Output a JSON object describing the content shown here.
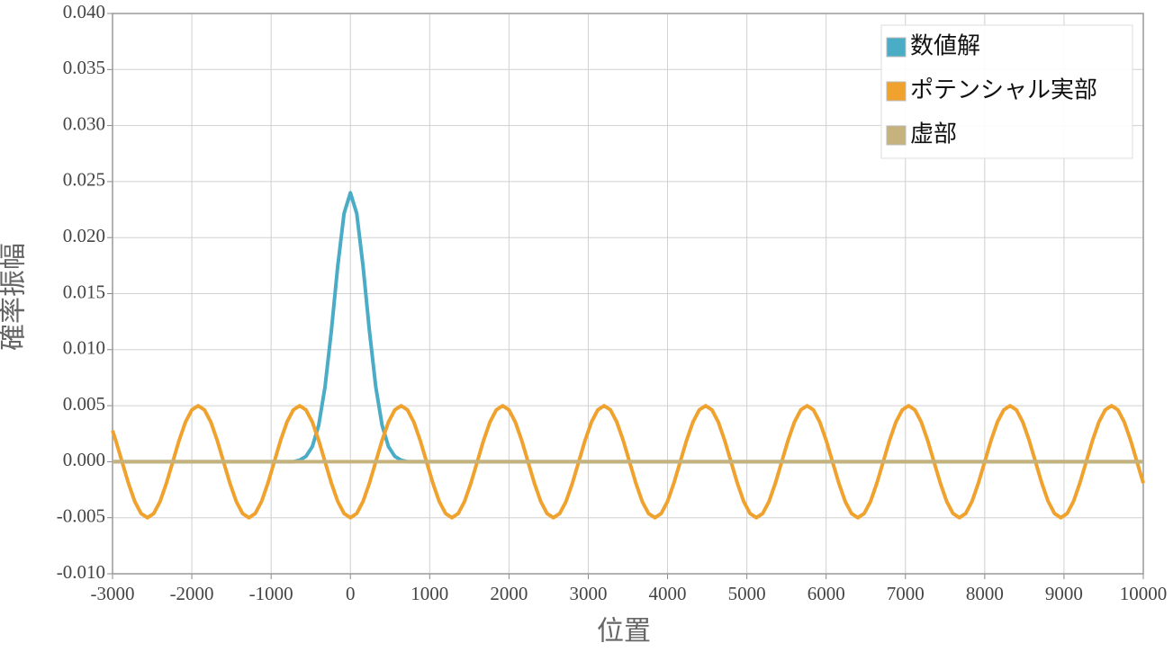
{
  "chart_data": {
    "type": "line",
    "x_label": "位置",
    "y_label": "確率振幅",
    "x": [
      -3000,
      -2960,
      -2880,
      -2800,
      -2720,
      -2640,
      -2560,
      -2480,
      -2400,
      -2320,
      -2240,
      -2160,
      -2080,
      -2000,
      -1920,
      -1840,
      -1760,
      -1680,
      -1600,
      -1520,
      -1440,
      -1360,
      -1280,
      -1200,
      -1120,
      -1040,
      -960,
      -880,
      -800,
      -720,
      -640,
      -560,
      -480,
      -400,
      -320,
      -240,
      -160,
      -80,
      0,
      80,
      160,
      240,
      320,
      400,
      480,
      560,
      640,
      720,
      800,
      880,
      960,
      1040,
      1120,
      1200,
      1280,
      1360,
      1440,
      1520,
      1600,
      1680,
      1760,
      1840,
      1920,
      2000,
      2080,
      2160,
      2240,
      2320,
      2400,
      2480,
      2560,
      2640,
      2720,
      2800,
      2880,
      2960,
      3040,
      3120,
      3200,
      3280,
      3360,
      3440,
      3520,
      3600,
      3680,
      3760,
      3840,
      3920,
      4000,
      4080,
      4160,
      4240,
      4320,
      4400,
      4480,
      4560,
      4640,
      4720,
      4800,
      4880,
      4960,
      5040,
      5120,
      5200,
      5280,
      5360,
      5440,
      5520,
      5600,
      5680,
      5760,
      5840,
      5920,
      6000,
      6080,
      6160,
      6240,
      6320,
      6400,
      6480,
      6560,
      6640,
      6720,
      6800,
      6880,
      6960,
      7040,
      7120,
      7200,
      7280,
      7360,
      7440,
      7520,
      7600,
      7680,
      7760,
      7840,
      7920,
      8000,
      8080,
      8160,
      8240,
      8320,
      8400,
      8480,
      8560,
      8640,
      8720,
      8800,
      8880,
      8960,
      9040,
      9120,
      9200,
      9280,
      9360,
      9440,
      9520,
      9600,
      9680,
      9760,
      9840,
      9920,
      10000
    ],
    "series": [
      {
        "name": "数値解",
        "color": "#4bacc6",
        "values": [
          0,
          0,
          0,
          0,
          0,
          0,
          0,
          0,
          0,
          0,
          0,
          0,
          0,
          0,
          0,
          0,
          0,
          0,
          0,
          0,
          0,
          0,
          0,
          0,
          0,
          0,
          0,
          0,
          0,
          0,
          0.00014,
          0.00048,
          0.00135,
          0.00325,
          0.00668,
          0.01168,
          0.01743,
          0.02215,
          0.024,
          0.02215,
          0.01743,
          0.01168,
          0.00668,
          0.00325,
          0.00135,
          0.00048,
          0.00014,
          0,
          0,
          0,
          0,
          0,
          0,
          0,
          0,
          0,
          0,
          0,
          0,
          0,
          0,
          0,
          0,
          0,
          0,
          0,
          0,
          0,
          0,
          0,
          0,
          0,
          0,
          0,
          0,
          0,
          0,
          0,
          0,
          0,
          0,
          0,
          0,
          0,
          0,
          0,
          0,
          0,
          0,
          0,
          0,
          0,
          0,
          0,
          0,
          0,
          0,
          0,
          0,
          0,
          0,
          0,
          0,
          0,
          0,
          0,
          0,
          0,
          0,
          0,
          0,
          0,
          0,
          0,
          0,
          0,
          0,
          0,
          0,
          0,
          0,
          0,
          0,
          0,
          0,
          0,
          0,
          0,
          0,
          0,
          0,
          0,
          0,
          0,
          0,
          0,
          0,
          0,
          0,
          0,
          0,
          0,
          0,
          0,
          0,
          0,
          0,
          0,
          0,
          0,
          0,
          0,
          0,
          0,
          0,
          0,
          0,
          0,
          0,
          0,
          0,
          0,
          0,
          0
        ]
      },
      {
        "name": "ポテンシャル実部",
        "color": "#f0a22e",
        "values": [
          0.00278,
          0.00191,
          0,
          -0.00191,
          -0.00354,
          -0.00462,
          -0.005,
          -0.00462,
          -0.00354,
          -0.00191,
          0,
          0.00191,
          0.00354,
          0.00462,
          0.005,
          0.00462,
          0.00354,
          0.00191,
          0,
          -0.00191,
          -0.00354,
          -0.00462,
          -0.005,
          -0.00462,
          -0.00354,
          -0.00191,
          0,
          0.00191,
          0.00354,
          0.00462,
          0.005,
          0.00462,
          0.00354,
          0.00191,
          0,
          -0.00191,
          -0.00354,
          -0.00462,
          -0.005,
          -0.00462,
          -0.00354,
          -0.00191,
          0,
          0.00191,
          0.00354,
          0.00462,
          0.005,
          0.00462,
          0.00354,
          0.00191,
          0,
          -0.00191,
          -0.00354,
          -0.00462,
          -0.005,
          -0.00462,
          -0.00354,
          -0.00191,
          0,
          0.00191,
          0.00354,
          0.00462,
          0.005,
          0.00462,
          0.00354,
          0.00191,
          0,
          -0.00191,
          -0.00354,
          -0.00462,
          -0.005,
          -0.00462,
          -0.00354,
          -0.00191,
          0,
          0.00191,
          0.00354,
          0.00462,
          0.005,
          0.00462,
          0.00354,
          0.00191,
          0,
          -0.00191,
          -0.00354,
          -0.00462,
          -0.005,
          -0.00462,
          -0.00354,
          -0.00191,
          0,
          0.00191,
          0.00354,
          0.00462,
          0.005,
          0.00462,
          0.00354,
          0.00191,
          0,
          -0.00191,
          -0.00354,
          -0.00462,
          -0.005,
          -0.00462,
          -0.00354,
          -0.00191,
          0,
          0.00191,
          0.00354,
          0.00462,
          0.005,
          0.00462,
          0.00354,
          0.00191,
          0,
          -0.00191,
          -0.00354,
          -0.00462,
          -0.005,
          -0.00462,
          -0.00354,
          -0.00191,
          0,
          0.00191,
          0.00354,
          0.00462,
          0.005,
          0.00462,
          0.00354,
          0.00191,
          0,
          -0.00191,
          -0.00354,
          -0.00462,
          -0.005,
          -0.00462,
          -0.00354,
          -0.00191,
          0,
          0.00191,
          0.00354,
          0.00462,
          0.005,
          0.00462,
          0.00354,
          0.00191,
          0,
          -0.00191,
          -0.00354,
          -0.00462,
          -0.005,
          -0.00462,
          -0.00354,
          -0.00191,
          0,
          0.00191,
          0.00354,
          0.00462,
          0.005,
          0.00462,
          0.00354,
          0.00191,
          0,
          -0.00191
        ]
      },
      {
        "name": "虚部",
        "color": "#c6b27c",
        "values": [
          0,
          0,
          0,
          0,
          0,
          0,
          0,
          0,
          0,
          0,
          0,
          0,
          0,
          0,
          0,
          0,
          0,
          0,
          0,
          0,
          0,
          0,
          0,
          0,
          0,
          0,
          0,
          0,
          0,
          0,
          0,
          0,
          0,
          0,
          0,
          0,
          0,
          0,
          0,
          0,
          0,
          0,
          0,
          0,
          0,
          0,
          0,
          0,
          0,
          0,
          0,
          0,
          0,
          0,
          0,
          0,
          0,
          0,
          0,
          0,
          0,
          0,
          0,
          0,
          0,
          0,
          0,
          0,
          0,
          0,
          0,
          0,
          0,
          0,
          0,
          0,
          0,
          0,
          0,
          0,
          0,
          0,
          0,
          0,
          0,
          0,
          0,
          0,
          0,
          0,
          0,
          0,
          0,
          0,
          0,
          0,
          0,
          0,
          0,
          0,
          0,
          0,
          0,
          0,
          0,
          0,
          0,
          0,
          0,
          0,
          0,
          0,
          0,
          0,
          0,
          0,
          0,
          0,
          0,
          0,
          0,
          0,
          0,
          0,
          0,
          0,
          0,
          0,
          0,
          0,
          0,
          0,
          0,
          0,
          0,
          0,
          0,
          0,
          0,
          0,
          0,
          0,
          0,
          0,
          0,
          0,
          0,
          0,
          0,
          0,
          0,
          0,
          0,
          0,
          0,
          0,
          0,
          0,
          0,
          0,
          0,
          0,
          0,
          0
        ]
      }
    ],
    "xlim": [
      -3000,
      10000
    ],
    "xticks": [
      -3000,
      -2000,
      -1000,
      0,
      1000,
      2000,
      3000,
      4000,
      5000,
      6000,
      7000,
      8000,
      9000,
      10000
    ],
    "ylim": [
      -0.01,
      0.04
    ],
    "yticks": [
      {
        "value": -0.01,
        "label": "-0.010"
      },
      {
        "value": -0.005,
        "label": "-0.005"
      },
      {
        "value": 0,
        "label": "0.000"
      },
      {
        "value": 0.005,
        "label": "0.005"
      },
      {
        "value": 0.01,
        "label": "0.010"
      },
      {
        "value": 0.015,
        "label": "0.015"
      },
      {
        "value": 0.02,
        "label": "0.020"
      },
      {
        "value": 0.025,
        "label": "0.025"
      },
      {
        "value": 0.03,
        "label": "0.030"
      },
      {
        "value": 0.035,
        "label": "0.035"
      },
      {
        "value": 0.04,
        "label": "0.040"
      }
    ],
    "grid": true,
    "legend": "top-right"
  }
}
